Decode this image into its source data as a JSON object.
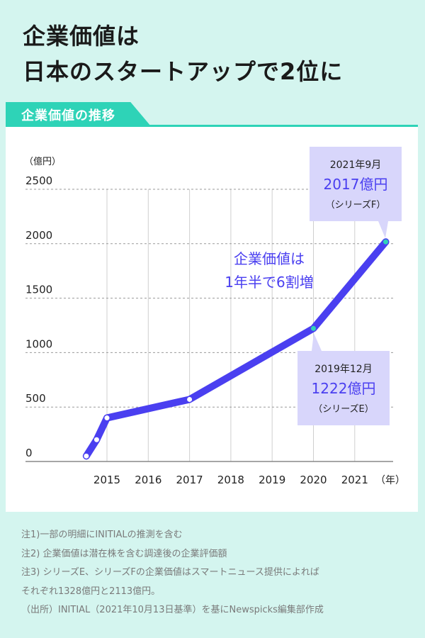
{
  "headline": {
    "line1": "企業価値は",
    "line2": "日本のスタートアップで2位に"
  },
  "section_tab": "企業価値の推移",
  "colors": {
    "background": "#d4f5ef",
    "accent": "#2ed3b7",
    "line": "#4a3ff0",
    "callout_bg": "#d8d6fb",
    "highlight_text": "#4a3ff0"
  },
  "chart_data": {
    "type": "line",
    "y_unit_label": "（億円）",
    "x_unit_label": "（年）",
    "ylim": [
      0,
      2500
    ],
    "y_ticks": [
      0,
      500,
      1000,
      1500,
      2000,
      2500
    ],
    "x_ticks": [
      "2015",
      "2016",
      "2017",
      "2018",
      "2019",
      "2020",
      "2021"
    ],
    "grid": "vertical and horizontal dashed",
    "points": [
      {
        "x": 2014.5,
        "y": 50
      },
      {
        "x": 2014.75,
        "y": 200
      },
      {
        "x": 2015.0,
        "y": 400
      },
      {
        "x": 2017.0,
        "y": 570
      },
      {
        "x": 2020.0,
        "y": 1222
      },
      {
        "x": 2021.75,
        "y": 2017
      }
    ],
    "annotation_main": [
      "企業価値は",
      "1年半で6割増"
    ],
    "callouts": [
      {
        "date": "2021年9月",
        "value": "2017億円",
        "series": "（シリーズF）"
      },
      {
        "date": "2019年12月",
        "value": "1222億円",
        "series": "（シリーズE）"
      }
    ]
  },
  "notes": [
    "注1)一部の明細にINITIALの推測を含む",
    "注2) 企業価値は潜在株を含む調達後の企業評価額",
    "注3) シリーズE、シリーズFの企業価値はスマートニュース提供によれば",
    "それぞれ1328億円と2113億円。",
    "（出所）INITIAL（2021年10月13日基準）を基にNewspicks編集部作成"
  ]
}
